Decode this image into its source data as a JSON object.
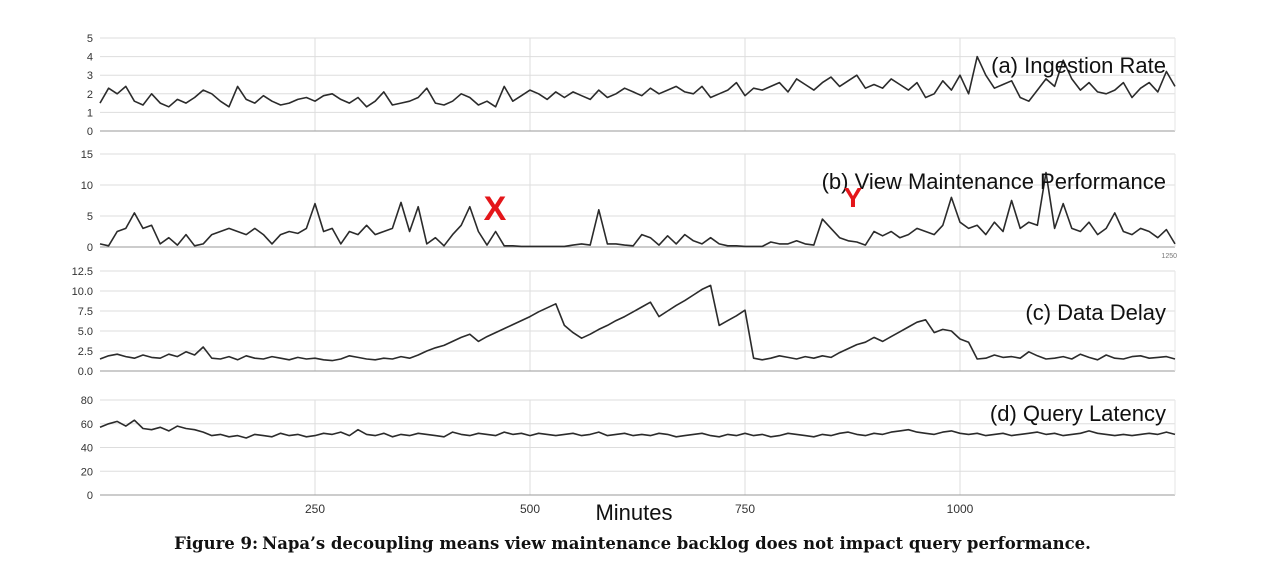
{
  "figure": {
    "number": "Figure 9:",
    "caption": "Napa’s decoupling means view maintenance backlog does not impact query performance.",
    "xlabel": "Minutes",
    "x_ticks": [
      250,
      500,
      750,
      1000
    ],
    "xlim": [
      0,
      1250
    ]
  },
  "colors": {
    "line": "#2b2b2b",
    "grid": "#dddddd",
    "axis": "#999999",
    "annotation": "#e4161a"
  },
  "chart_data": [
    {
      "type": "line",
      "title": "(a) Ingestion Rate",
      "ylim": [
        0,
        5
      ],
      "y_ticks": [
        0,
        1,
        2,
        3,
        4,
        5
      ],
      "x": [
        0,
        10,
        20,
        30,
        40,
        50,
        60,
        70,
        80,
        90,
        100,
        110,
        120,
        130,
        140,
        150,
        160,
        170,
        180,
        190,
        200,
        210,
        220,
        230,
        240,
        250,
        260,
        270,
        280,
        290,
        300,
        310,
        320,
        330,
        340,
        350,
        360,
        370,
        380,
        390,
        400,
        410,
        420,
        430,
        440,
        450,
        460,
        470,
        480,
        490,
        500,
        510,
        520,
        530,
        540,
        550,
        560,
        570,
        580,
        590,
        600,
        610,
        620,
        630,
        640,
        650,
        660,
        670,
        680,
        690,
        700,
        710,
        720,
        730,
        740,
        750,
        760,
        770,
        780,
        790,
        800,
        810,
        820,
        830,
        840,
        850,
        860,
        870,
        880,
        890,
        900,
        910,
        920,
        930,
        940,
        950,
        960,
        970,
        980,
        990,
        1000,
        1010,
        1020,
        1030,
        1040,
        1050,
        1060,
        1070,
        1080,
        1090,
        1100,
        1110,
        1120,
        1130,
        1140,
        1150,
        1160,
        1170,
        1180,
        1190,
        1200,
        1210,
        1220,
        1230,
        1240,
        1250
      ],
      "values": [
        1.5,
        2.3,
        2.0,
        2.4,
        1.6,
        1.4,
        2.0,
        1.5,
        1.3,
        1.7,
        1.5,
        1.8,
        2.2,
        2.0,
        1.6,
        1.3,
        2.4,
        1.7,
        1.5,
        1.9,
        1.6,
        1.4,
        1.5,
        1.7,
        1.8,
        1.6,
        1.9,
        2.0,
        1.7,
        1.5,
        1.8,
        1.3,
        1.6,
        2.1,
        1.4,
        1.5,
        1.6,
        1.8,
        2.3,
        1.5,
        1.4,
        1.6,
        2.0,
        1.8,
        1.4,
        1.6,
        1.3,
        2.4,
        1.6,
        1.9,
        2.2,
        2.0,
        1.7,
        2.1,
        1.8,
        2.1,
        1.9,
        1.7,
        2.2,
        1.8,
        2.0,
        2.3,
        2.1,
        1.9,
        2.3,
        2.0,
        2.2,
        2.4,
        2.1,
        2.0,
        2.4,
        1.8,
        2.0,
        2.2,
        2.6,
        1.9,
        2.3,
        2.2,
        2.4,
        2.6,
        2.1,
        2.8,
        2.5,
        2.2,
        2.6,
        2.9,
        2.4,
        2.7,
        3.0,
        2.3,
        2.5,
        2.3,
        2.8,
        2.5,
        2.2,
        2.6,
        1.8,
        2.0,
        2.7,
        2.2,
        3.0,
        2.0,
        4.0,
        3.0,
        2.3,
        2.5,
        2.7,
        1.8,
        1.6,
        2.2,
        2.8,
        2.4,
        3.8,
        2.8,
        2.2,
        2.6,
        2.1,
        2.0,
        2.2,
        2.6,
        1.8,
        2.3,
        2.6,
        2.1,
        3.2,
        2.4
      ]
    },
    {
      "type": "line",
      "title": "(b) View Maintenance Performance",
      "ylim": [
        0,
        15
      ],
      "y_ticks": [
        0,
        5,
        10,
        15
      ],
      "x_end_label": "1250",
      "annotations": [
        "X",
        "Y"
      ],
      "x": [
        0,
        10,
        20,
        30,
        40,
        50,
        60,
        70,
        80,
        90,
        100,
        110,
        120,
        130,
        140,
        150,
        160,
        170,
        180,
        190,
        200,
        210,
        220,
        230,
        240,
        250,
        260,
        270,
        280,
        290,
        300,
        310,
        320,
        330,
        340,
        350,
        360,
        370,
        380,
        390,
        400,
        410,
        420,
        430,
        440,
        450,
        460,
        470,
        480,
        490,
        500,
        510,
        520,
        530,
        540,
        550,
        560,
        570,
        580,
        590,
        600,
        610,
        620,
        630,
        640,
        650,
        660,
        670,
        680,
        690,
        700,
        710,
        720,
        730,
        740,
        750,
        760,
        770,
        780,
        790,
        800,
        810,
        820,
        830,
        840,
        850,
        860,
        870,
        880,
        890,
        900,
        910,
        920,
        930,
        940,
        950,
        960,
        970,
        980,
        990,
        1000,
        1010,
        1020,
        1030,
        1040,
        1050,
        1060,
        1070,
        1080,
        1090,
        1100,
        1110,
        1120,
        1130,
        1140,
        1150,
        1160,
        1170,
        1180,
        1190,
        1200,
        1210,
        1220,
        1230,
        1240,
        1250
      ],
      "values": [
        0.5,
        0.2,
        2.5,
        3.0,
        5.5,
        3.0,
        3.5,
        0.5,
        1.5,
        0.3,
        2.0,
        0.2,
        0.5,
        2.0,
        2.5,
        3.0,
        2.5,
        2.0,
        3.0,
        2.0,
        0.5,
        2.0,
        2.5,
        2.2,
        3.0,
        7.0,
        2.5,
        3.0,
        0.5,
        2.5,
        2.0,
        3.5,
        2.0,
        2.5,
        3.0,
        7.2,
        2.5,
        6.5,
        0.5,
        1.5,
        0.2,
        2.0,
        3.5,
        6.5,
        2.5,
        0.3,
        2.5,
        0.2,
        0.2,
        0.1,
        0.1,
        0.1,
        0.1,
        0.1,
        0.1,
        0.3,
        0.5,
        0.3,
        6.0,
        0.5,
        0.5,
        0.3,
        0.2,
        2.0,
        1.5,
        0.3,
        1.8,
        0.5,
        2.0,
        1.0,
        0.5,
        1.5,
        0.5,
        0.2,
        0.2,
        0.1,
        0.1,
        0.1,
        0.8,
        0.5,
        0.5,
        1.0,
        0.5,
        0.3,
        4.5,
        3.0,
        1.5,
        1.0,
        0.8,
        0.3,
        2.5,
        1.8,
        2.5,
        1.5,
        2.0,
        3.0,
        2.5,
        2.0,
        3.5,
        8.0,
        4.0,
        3.0,
        3.5,
        2.0,
        4.0,
        2.5,
        7.5,
        3.0,
        4.0,
        3.5,
        12.0,
        3.0,
        7.0,
        3.0,
        2.5,
        4.0,
        2.0,
        3.0,
        5.5,
        2.5,
        2.0,
        3.0,
        2.5,
        1.5,
        2.8,
        0.5
      ]
    },
    {
      "type": "line",
      "title": "(c) Data Delay",
      "ylim": [
        0,
        12.5
      ],
      "y_ticks": [
        "0.0",
        "2.5",
        "5.0",
        "7.5",
        "10.0",
        "12.5"
      ],
      "x": [
        0,
        10,
        20,
        30,
        40,
        50,
        60,
        70,
        80,
        90,
        100,
        110,
        120,
        130,
        140,
        150,
        160,
        170,
        180,
        190,
        200,
        210,
        220,
        230,
        240,
        250,
        260,
        270,
        280,
        290,
        300,
        310,
        320,
        330,
        340,
        350,
        360,
        370,
        380,
        390,
        400,
        410,
        420,
        430,
        440,
        450,
        460,
        470,
        480,
        490,
        500,
        510,
        520,
        530,
        540,
        550,
        560,
        570,
        580,
        590,
        600,
        610,
        620,
        630,
        640,
        650,
        660,
        670,
        680,
        690,
        700,
        710,
        720,
        730,
        740,
        750,
        760,
        770,
        780,
        790,
        800,
        810,
        820,
        830,
        840,
        850,
        860,
        870,
        880,
        890,
        900,
        910,
        920,
        930,
        940,
        950,
        960,
        970,
        980,
        990,
        1000,
        1010,
        1020,
        1030,
        1040,
        1050,
        1060,
        1070,
        1080,
        1090,
        1100,
        1110,
        1120,
        1130,
        1140,
        1150,
        1160,
        1170,
        1180,
        1190,
        1200,
        1210,
        1220,
        1230,
        1240,
        1250
      ],
      "values": [
        1.5,
        1.9,
        2.1,
        1.8,
        1.6,
        2.0,
        1.7,
        1.6,
        2.1,
        1.8,
        2.4,
        2.0,
        3.0,
        1.6,
        1.5,
        1.8,
        1.4,
        1.9,
        1.6,
        1.5,
        1.8,
        1.6,
        1.4,
        1.7,
        1.5,
        1.6,
        1.4,
        1.3,
        1.5,
        1.9,
        1.7,
        1.5,
        1.4,
        1.6,
        1.5,
        1.8,
        1.6,
        2.0,
        2.5,
        2.9,
        3.2,
        3.7,
        4.2,
        4.6,
        3.7,
        4.3,
        4.8,
        5.3,
        5.8,
        6.3,
        6.8,
        7.4,
        7.9,
        8.4,
        5.7,
        4.8,
        4.1,
        4.6,
        5.2,
        5.7,
        6.3,
        6.8,
        7.4,
        8.0,
        8.6,
        6.8,
        7.5,
        8.2,
        8.8,
        9.5,
        10.2,
        10.7,
        5.7,
        6.3,
        6.9,
        7.6,
        1.6,
        1.4,
        1.6,
        1.9,
        1.7,
        1.5,
        1.8,
        1.6,
        1.9,
        1.7,
        2.3,
        2.8,
        3.3,
        3.6,
        4.2,
        3.7,
        4.3,
        4.9,
        5.5,
        6.1,
        6.4,
        4.8,
        5.2,
        5.0,
        4.0,
        3.6,
        1.5,
        1.6,
        2.0,
        1.7,
        1.8,
        1.6,
        2.4,
        1.9,
        1.5,
        1.6,
        1.8,
        1.5,
        2.1,
        1.7,
        1.4,
        2.0,
        1.6,
        1.5,
        1.8,
        1.9,
        1.6,
        1.7,
        1.8,
        1.5
      ]
    },
    {
      "type": "line",
      "title": "(d) Query Latency",
      "ylim": [
        0,
        80
      ],
      "y_ticks": [
        0,
        20,
        40,
        60,
        80
      ],
      "x": [
        0,
        10,
        20,
        30,
        40,
        50,
        60,
        70,
        80,
        90,
        100,
        110,
        120,
        130,
        140,
        150,
        160,
        170,
        180,
        190,
        200,
        210,
        220,
        230,
        240,
        250,
        260,
        270,
        280,
        290,
        300,
        310,
        320,
        330,
        340,
        350,
        360,
        370,
        380,
        390,
        400,
        410,
        420,
        430,
        440,
        450,
        460,
        470,
        480,
        490,
        500,
        510,
        520,
        530,
        540,
        550,
        560,
        570,
        580,
        590,
        600,
        610,
        620,
        630,
        640,
        650,
        660,
        670,
        680,
        690,
        700,
        710,
        720,
        730,
        740,
        750,
        760,
        770,
        780,
        790,
        800,
        810,
        820,
        830,
        840,
        850,
        860,
        870,
        880,
        890,
        900,
        910,
        920,
        930,
        940,
        950,
        960,
        970,
        980,
        990,
        1000,
        1010,
        1020,
        1030,
        1040,
        1050,
        1060,
        1070,
        1080,
        1090,
        1100,
        1110,
        1120,
        1130,
        1140,
        1150,
        1160,
        1170,
        1180,
        1190,
        1200,
        1210,
        1220,
        1230,
        1240,
        1250
      ],
      "values": [
        57,
        60,
        62,
        58,
        63,
        56,
        55,
        57,
        54,
        58,
        56,
        55,
        53,
        50,
        51,
        49,
        50,
        48,
        51,
        50,
        49,
        52,
        50,
        51,
        49,
        50,
        52,
        51,
        53,
        50,
        55,
        51,
        50,
        52,
        49,
        51,
        50,
        52,
        51,
        50,
        49,
        53,
        51,
        50,
        52,
        51,
        50,
        53,
        51,
        52,
        50,
        52,
        51,
        50,
        51,
        52,
        50,
        51,
        53,
        50,
        51,
        52,
        50,
        51,
        50,
        52,
        51,
        49,
        50,
        51,
        52,
        50,
        49,
        51,
        50,
        52,
        50,
        51,
        49,
        50,
        52,
        51,
        50,
        49,
        51,
        50,
        52,
        53,
        51,
        50,
        52,
        51,
        53,
        54,
        55,
        53,
        52,
        51,
        53,
        54,
        52,
        51,
        52,
        50,
        51,
        52,
        50,
        51,
        52,
        53,
        51,
        52,
        50,
        51,
        52,
        54,
        52,
        51,
        50,
        51,
        50,
        51,
        52,
        51,
        53,
        51
      ]
    }
  ]
}
